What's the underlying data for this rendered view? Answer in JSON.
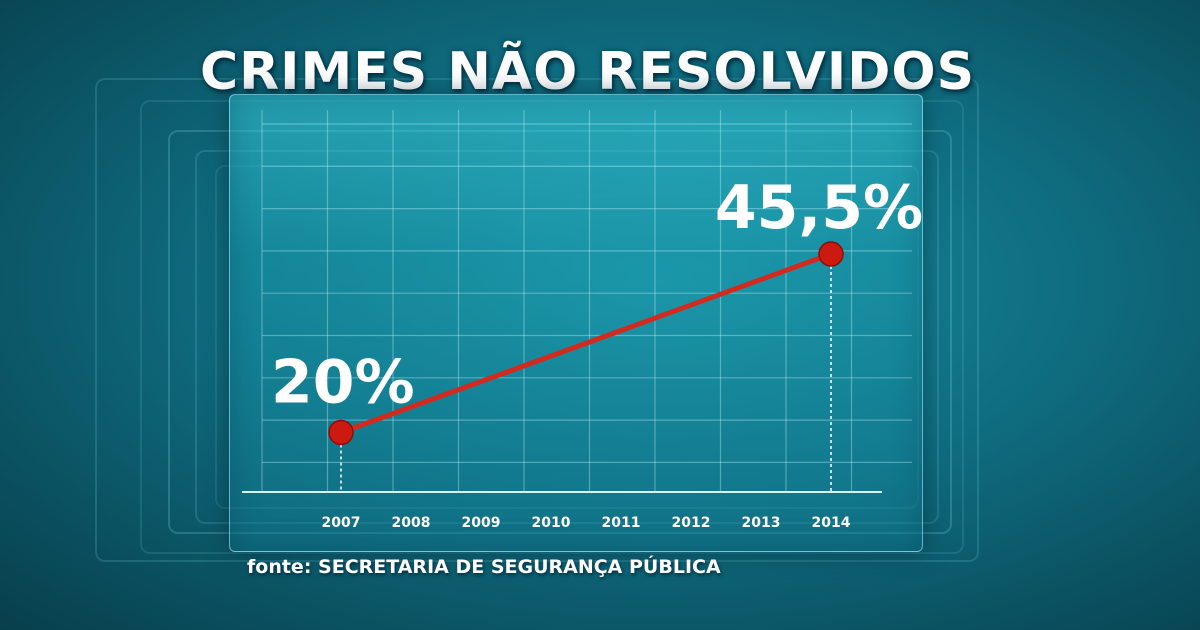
{
  "chart_data": {
    "type": "line",
    "title": "CRIMES NÃO RESOLVIDOS",
    "categories": [
      "2007",
      "2008",
      "2009",
      "2010",
      "2011",
      "2012",
      "2013",
      "2014"
    ],
    "points": [
      {
        "x": "2007",
        "y": 20,
        "label": "20%"
      },
      {
        "x": "2014",
        "y": 45.5,
        "label": "45,5%"
      }
    ],
    "xlabel": "",
    "ylabel": "",
    "ylim": [
      0,
      55
    ],
    "grid": true,
    "line_color": "#d22a1f",
    "marker_color": "#cc1a10"
  },
  "source": "fonte: SECRETARIA DE SEGURANÇA PÚBLICA"
}
